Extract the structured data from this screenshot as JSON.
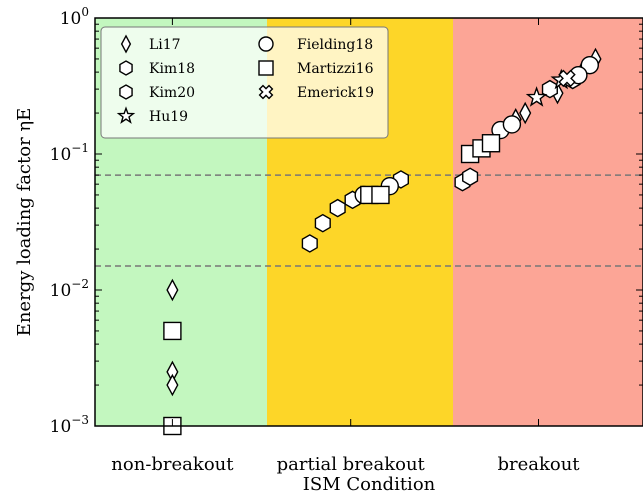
{
  "chart_data": {
    "type": "scatter",
    "title": "",
    "xlabel": "ISM Condition",
    "ylabel": "Energy loading factor ηE",
    "yscale": "log",
    "ylim": [
      0.001,
      1
    ],
    "y_ticks": [
      {
        "base": "10",
        "exp": "0",
        "value": 1
      },
      {
        "base": "10",
        "exp": "−1",
        "value": 0.1
      },
      {
        "base": "10",
        "exp": "−2",
        "value": 0.01
      },
      {
        "base": "10",
        "exp": "−3",
        "value": 0.001
      }
    ],
    "regions": [
      {
        "label": "non-breakout",
        "color": "#c3f7bf"
      },
      {
        "label": "partial breakout",
        "color": "#fdd628"
      },
      {
        "label": "breakout",
        "color": "#fca596"
      }
    ],
    "reference_lines": [
      0.07,
      0.015
    ],
    "grid": false,
    "legend_position": "top-left",
    "series": [
      {
        "name": "Li17",
        "marker": "diamond",
        "points": [
          {
            "x": 0.45,
            "y": 0.01
          },
          {
            "x": 0.45,
            "y": 0.0025
          },
          {
            "x": 0.45,
            "y": 0.002
          },
          {
            "x": 2.75,
            "y": 0.5
          },
          {
            "x": 2.68,
            "y": 0.4
          },
          {
            "x": 2.55,
            "y": 0.28
          },
          {
            "x": 2.38,
            "y": 0.2
          },
          {
            "x": 2.33,
            "y": 0.18
          }
        ]
      },
      {
        "name": "Kim18",
        "marker": "hexagon",
        "points": [
          {
            "x": 1.23,
            "y": 0.022
          },
          {
            "x": 1.3,
            "y": 0.031
          },
          {
            "x": 2.05,
            "y": 0.062
          },
          {
            "x": 2.09,
            "y": 0.068
          }
        ]
      },
      {
        "name": "Kim20",
        "marker": "hexagon",
        "points": [
          {
            "x": 1.38,
            "y": 0.04
          },
          {
            "x": 1.46,
            "y": 0.046
          },
          {
            "x": 1.72,
            "y": 0.065
          },
          {
            "x": 2.51,
            "y": 0.3
          },
          {
            "x": 2.63,
            "y": 0.35
          }
        ]
      },
      {
        "name": "Hu19",
        "marker": "star",
        "points": [
          {
            "x": 2.44,
            "y": 0.26
          },
          {
            "x": 2.57,
            "y": 0.35
          }
        ]
      },
      {
        "name": "Fielding18",
        "marker": "circle",
        "points": [
          {
            "x": 1.52,
            "y": 0.05
          },
          {
            "x": 1.66,
            "y": 0.058
          },
          {
            "x": 2.25,
            "y": 0.15
          },
          {
            "x": 2.31,
            "y": 0.165
          },
          {
            "x": 2.72,
            "y": 0.45
          },
          {
            "x": 2.66,
            "y": 0.38
          }
        ]
      },
      {
        "name": "Martizzi16",
        "marker": "square",
        "points": [
          {
            "x": 0.45,
            "y": 0.005
          },
          {
            "x": 0.45,
            "y": 0.001
          },
          {
            "x": 1.55,
            "y": 0.05
          },
          {
            "x": 1.61,
            "y": 0.05
          },
          {
            "x": 2.09,
            "y": 0.1
          },
          {
            "x": 2.15,
            "y": 0.11
          },
          {
            "x": 2.2,
            "y": 0.12
          }
        ]
      },
      {
        "name": "Emerick19",
        "marker": "cross",
        "points": [
          {
            "x": 2.6,
            "y": 0.36
          }
        ]
      }
    ]
  }
}
